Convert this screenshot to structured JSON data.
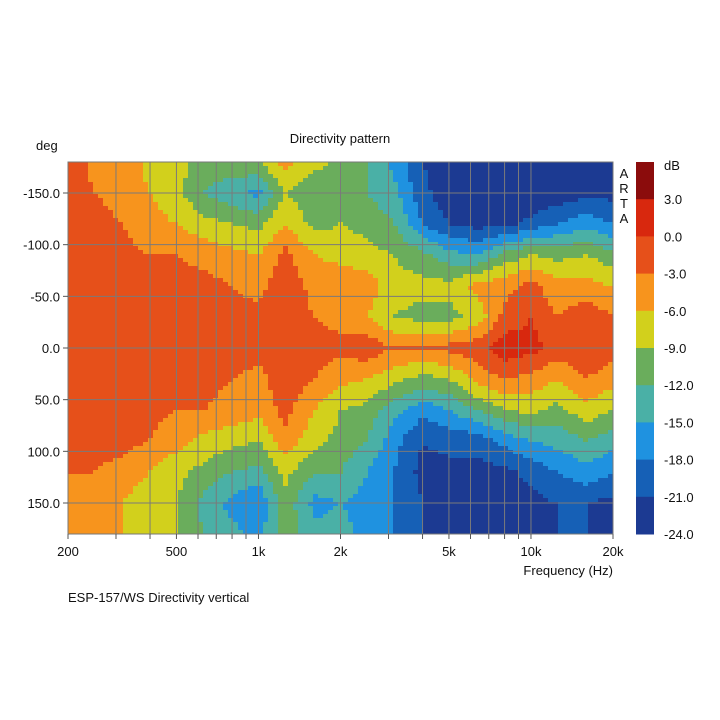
{
  "chart_data": {
    "type": "heatmap",
    "title": "Directivity pattern",
    "xlabel": "Frequency (Hz)",
    "ylabel": "deg",
    "caption": "ESP-157/WS  Directivity vertical",
    "watermark": "ARTA",
    "x_scale": "log",
    "xlim": [
      200,
      20000
    ],
    "ylim": [
      -180,
      180
    ],
    "x_ticks": [
      200,
      500,
      1000,
      2000,
      5000,
      10000,
      20000
    ],
    "x_tick_labels": [
      "200",
      "500",
      "1k",
      "2k",
      "5k",
      "10k",
      "20k"
    ],
    "y_ticks": [
      -150,
      -100,
      -50,
      0,
      50,
      100,
      150
    ],
    "y_tick_labels": [
      "-150.0",
      "-100.0",
      "-50.0",
      "0.0",
      "50.0",
      "100.0",
      "150.0"
    ],
    "grid": true,
    "colorbar": {
      "label": "dB",
      "position": "right",
      "ticks": [
        "3.0",
        "0.0",
        "-3.0",
        "-6.0",
        "-9.0",
        "-12.0",
        "-15.0",
        "-18.0",
        "-21.0",
        "-24.0"
      ],
      "levels": [
        6,
        3,
        0,
        -3,
        -6,
        -9,
        -12,
        -15,
        -18,
        -21,
        -24
      ],
      "colors": [
        "#8b0c0c",
        "#d8280e",
        "#e6501a",
        "#f7941d",
        "#d2d01c",
        "#6aad5c",
        "#4ab0a6",
        "#1f92e0",
        "#1660b6",
        "#1c3a92"
      ]
    },
    "frequencies": [
      200,
      250,
      315,
      400,
      500,
      630,
      800,
      1000,
      1250,
      1600,
      2000,
      2500,
      3150,
      4000,
      5000,
      6300,
      8000,
      10000,
      12500,
      16000,
      20000
    ],
    "angles": [
      -180,
      -150,
      -120,
      -90,
      -60,
      -30,
      0,
      30,
      60,
      90,
      120,
      150,
      180
    ],
    "z_db": [
      [
        -1,
        -4,
        -4,
        -7,
        -8,
        -10,
        -10,
        -9,
        -5,
        -8,
        -10,
        -12,
        -16,
        -21,
        -23,
        -24,
        -24,
        -24,
        -24,
        -24,
        -24
      ],
      [
        -1,
        -3,
        -4,
        -6,
        -8,
        -12,
        -14,
        -16,
        -9,
        -11,
        -10,
        -12,
        -14,
        -20,
        -23,
        -24,
        -24,
        -24,
        -23,
        -22,
        -22
      ],
      [
        -1,
        -2,
        -3,
        -5,
        -6,
        -8,
        -9,
        -10,
        -6,
        -10,
        -9,
        -10,
        -12,
        -18,
        -21,
        -22,
        -22,
        -20,
        -18,
        -16,
        -18
      ],
      [
        -1,
        -1,
        -2,
        -3,
        -3,
        -4,
        -5,
        -6,
        -2,
        -6,
        -7,
        -8,
        -9,
        -11,
        -14,
        -15,
        -11,
        -9,
        -10,
        -9,
        -11
      ],
      [
        -1,
        -1,
        -1,
        -1,
        -2,
        -2,
        -3,
        -4,
        -1,
        -4,
        -4,
        -4,
        -8,
        -8,
        -8,
        -5,
        -4,
        -2,
        -5,
        -5,
        -6
      ],
      [
        -1,
        -1,
        -1,
        -1,
        -1,
        -1,
        -2,
        -2,
        -1,
        -3,
        -4,
        -6,
        -9,
        -10,
        -10,
        -8,
        -2,
        0,
        -3,
        -1,
        -3
      ],
      [
        -1,
        -1,
        -1,
        -1,
        -1,
        -1,
        -1,
        -2,
        -2,
        -2,
        -2,
        -1,
        -3,
        -3,
        -2,
        -1,
        2,
        1,
        -1,
        0,
        -2
      ],
      [
        -1,
        -1,
        -1,
        -1,
        -1,
        -2,
        -3,
        -4,
        -1,
        -3,
        -5,
        -6,
        -8,
        -10,
        -9,
        -5,
        -3,
        -4,
        -6,
        -3,
        -5
      ],
      [
        -1,
        -1,
        -1,
        -2,
        -3,
        -3,
        -4,
        -5,
        -2,
        -6,
        -9,
        -10,
        -14,
        -17,
        -15,
        -12,
        -9,
        -8,
        -10,
        -7,
        -9
      ],
      [
        -2,
        -2,
        -2,
        -3,
        -5,
        -7,
        -8,
        -9,
        -4,
        -8,
        -10,
        -12,
        -17,
        -21,
        -20,
        -20,
        -17,
        -15,
        -14,
        -12,
        -14
      ],
      [
        -3,
        -3,
        -4,
        -6,
        -8,
        -10,
        -12,
        -13,
        -8,
        -12,
        -12,
        -15,
        -18,
        -22,
        -22,
        -22,
        -22,
        -20,
        -18,
        -16,
        -18
      ],
      [
        -4,
        -4,
        -6,
        -8,
        -9,
        -13,
        -16,
        -18,
        -10,
        -16,
        -15,
        -16,
        -18,
        -21,
        -22,
        -22,
        -23,
        -22,
        -21,
        -21,
        -22
      ],
      [
        -3,
        -4,
        -6,
        -8,
        -9,
        -12,
        -14,
        -16,
        -10,
        -14,
        -14,
        -16,
        -18,
        -21,
        -22,
        -22,
        -23,
        -22,
        -21,
        -21,
        -22
      ]
    ]
  }
}
